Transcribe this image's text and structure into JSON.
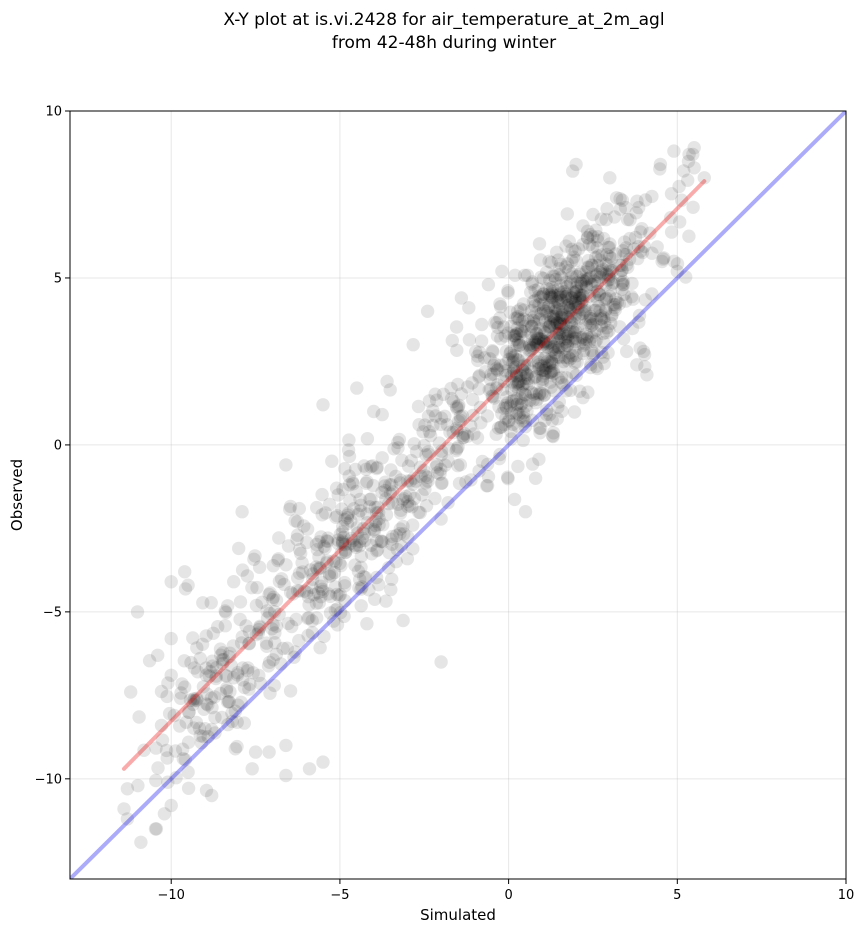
{
  "chart_data": {
    "type": "scatter",
    "title_lines": [
      "X-Y plot at is.vi.2428 for air_temperature_at_2m_agl",
      "from 42-48h during winter"
    ],
    "xlabel": "Simulated",
    "ylabel": "Observed",
    "xlim": [
      -13,
      10
    ],
    "ylim": [
      -13,
      10
    ],
    "xticks": [
      -10,
      -5,
      0,
      5,
      10
    ],
    "yticks": [
      -10,
      -5,
      0,
      5,
      10
    ],
    "xtick_labels": [
      "−10",
      "−5",
      "0",
      "5",
      "10"
    ],
    "ytick_labels": [
      "−10",
      "−5",
      "0",
      "5",
      "10"
    ],
    "grid": true,
    "point_color": "#000000",
    "point_alpha": 0.1,
    "identity_line": {
      "x": [
        -13,
        10
      ],
      "y": [
        -13,
        10
      ],
      "color": "#0000ee",
      "alpha": 0.33
    },
    "fit_line": {
      "x": [
        -11.4,
        5.8
      ],
      "y": [
        -9.7,
        7.9
      ],
      "color": "#ee0000",
      "alpha": 0.33
    },
    "scatter_model": {
      "n": 1300,
      "slope": 1.023,
      "intercept": 1.96,
      "residual_sd": 1.25
    },
    "points": [
      [
        -11.2,
        -7.4
      ],
      [
        -11.0,
        -5.0
      ],
      [
        -11.4,
        -10.9
      ],
      [
        -11.3,
        -11.2
      ],
      [
        -11.3,
        -10.3
      ],
      [
        -10.9,
        -11.9
      ],
      [
        -10.0,
        -4.1
      ],
      [
        -9.6,
        -3.8
      ],
      [
        -9.5,
        -4.2
      ],
      [
        -6.6,
        -0.6
      ],
      [
        -8.0,
        -3.1
      ],
      [
        -7.9,
        -2.0
      ],
      [
        -5.5,
        1.2
      ],
      [
        -4.5,
        1.7
      ],
      [
        -4.0,
        1.0
      ],
      [
        -3.6,
        1.9
      ],
      [
        -2.4,
        4.0
      ],
      [
        -1.4,
        4.4
      ],
      [
        -6.6,
        -9.0
      ],
      [
        -5.5,
        -9.5
      ],
      [
        -6.6,
        -9.9
      ],
      [
        -5.9,
        -9.7
      ],
      [
        -8.8,
        -10.5
      ],
      [
        -9.5,
        -9.8
      ],
      [
        -7.6,
        -9.7
      ],
      [
        -2.0,
        -6.5
      ],
      [
        0.5,
        -2.0
      ],
      [
        0.8,
        -1.0
      ],
      [
        3.5,
        2.8
      ],
      [
        3.9,
        2.9
      ],
      [
        4.1,
        2.1
      ],
      [
        4.0,
        2.8
      ],
      [
        3.8,
        2.4
      ],
      [
        2.0,
        8.4
      ],
      [
        1.9,
        8.2
      ],
      [
        3.0,
        8.0
      ],
      [
        3.2,
        7.4
      ],
      [
        4.5,
        8.4
      ],
      [
        4.9,
        8.8
      ],
      [
        5.5,
        8.9
      ],
      [
        5.8,
        8.0
      ],
      [
        5.5,
        8.3
      ],
      [
        1.2,
        5.5
      ],
      [
        1.8,
        6.1
      ],
      [
        2.2,
        6.0
      ],
      [
        -0.2,
        5.2
      ],
      [
        -0.6,
        4.8
      ],
      [
        0.9,
        4.2
      ],
      [
        5.0,
        5.2
      ],
      [
        4.6,
        5.6
      ],
      [
        4.9,
        5.5
      ],
      [
        -10.4,
        -6.3
      ],
      [
        -10.0,
        -6.9
      ],
      [
        -10.0,
        -5.8
      ],
      [
        -9.0,
        -8.5
      ],
      [
        -8.1,
        -9.1
      ],
      [
        -7.5,
        -9.2
      ],
      [
        -7.1,
        -9.2
      ],
      [
        -10.1,
        -10.1
      ],
      [
        -10.0,
        -10.8
      ]
    ]
  }
}
